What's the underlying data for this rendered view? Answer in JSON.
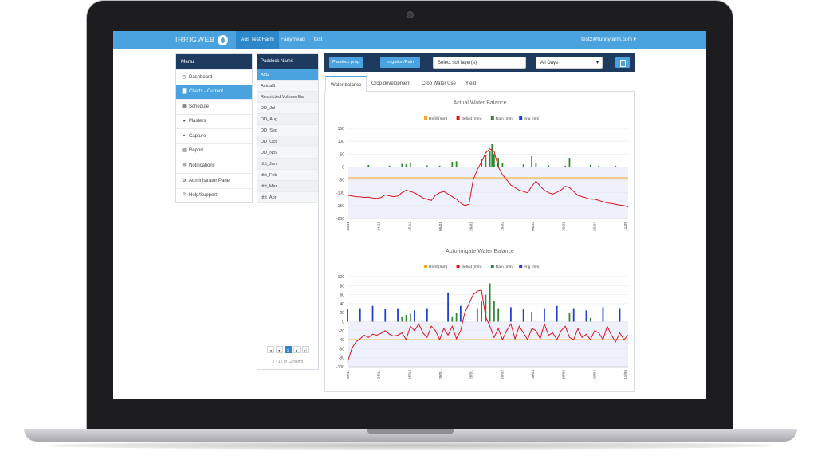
{
  "app": {
    "brand": "IRRIGWEB",
    "farm_tabs": [
      "Aus Test Farm",
      "Fairymead",
      "test"
    ],
    "active_farm": 0,
    "user": "test2@funnyfarm.com ▾"
  },
  "menu": {
    "header": "Menu",
    "items": [
      {
        "label": "Dashboard",
        "icon": "clock-icon",
        "glyph": "◷"
      },
      {
        "label": "Charts - Current",
        "icon": "bar-chart-icon",
        "glyph": "▇"
      },
      {
        "label": "Schedule",
        "icon": "calendar-icon",
        "glyph": "▦"
      },
      {
        "label": "Masters",
        "icon": "globe-icon",
        "glyph": "◕"
      },
      {
        "label": "Capture",
        "icon": "drop-icon",
        "glyph": "•"
      },
      {
        "label": "Report",
        "icon": "report-icon",
        "glyph": "▤"
      },
      {
        "label": "Notifications",
        "icon": "envelope-icon",
        "glyph": "✉"
      },
      {
        "label": "Administrator Panel",
        "icon": "gear-icon",
        "glyph": "⚙"
      },
      {
        "label": "Help/Support",
        "icon": "question-icon",
        "glyph": "?"
      }
    ],
    "active_index": 1
  },
  "paddocks": {
    "header": "Paddock Name",
    "items": [
      "Act2",
      "Actual1",
      "Restricted Volume Ea",
      "DD_Jul",
      "DD_Aug",
      "DD_Sep",
      "DD_Oct",
      "DD_Nov",
      "ttttt_Jan",
      "ttttt_Feb",
      "ttttt_Mar",
      "ttttt_Apr"
    ],
    "active_index": 0,
    "pager": {
      "first": "|◂",
      "prev": "◂",
      "page": "1",
      "next": "▸",
      "last": "▸|"
    },
    "info": "1 - 12 of 12 items"
  },
  "toolbar": {
    "paddock_prop": "Paddock prop.",
    "irrigation_rain": "Irrigation/Rain",
    "soil_layer": "Select soil layer(s)",
    "days": "All Days",
    "days_caret": "▾"
  },
  "tabs": [
    "Water balance",
    "Crop development",
    "Crop Water Use",
    "Yield"
  ],
  "active_tab": 0,
  "colors": {
    "refill": "#f5a623",
    "deficit": "#e0131b",
    "rain": "#2e8b2e",
    "irrig": "#1f3fd6",
    "band": "#eef0fb"
  },
  "chart_data": [
    {
      "type": "line",
      "title": "Actual Water Balance",
      "legend": [
        "Refill (mm)",
        "Deficit (mm)",
        "Rain (mm)",
        "Irrig (mm)"
      ],
      "legend_position": "top",
      "x_labels": [
        "03/11",
        "24/11",
        "15/12",
        "05/01",
        "26/01",
        "16/02",
        "09/03",
        "30/03",
        "20/04",
        "11/05"
      ],
      "yticks": [
        150,
        100,
        50,
        0,
        -50,
        -100,
        -150,
        -200
      ],
      "ylim": [
        -200,
        150
      ],
      "refill": -42,
      "deficit": [
        -110,
        -112,
        -115,
        -116,
        -118,
        -117,
        -120,
        -122,
        -119,
        -108,
        -112,
        -115,
        -113,
        -100,
        -90,
        -95,
        -100,
        -110,
        -120,
        -125,
        -130,
        -110,
        -100,
        -95,
        -105,
        -115,
        -125,
        -140,
        -150,
        -145,
        -50,
        -10,
        20,
        55,
        70,
        60,
        0,
        -30,
        -50,
        -70,
        -80,
        -90,
        -95,
        -100,
        -75,
        -55,
        -75,
        -90,
        -100,
        -105,
        -98,
        -90,
        -75,
        -80,
        -95,
        -110,
        -115,
        -120,
        -125,
        -125,
        -130,
        -135,
        -140,
        -142,
        -145,
        -148,
        -150,
        -155
      ],
      "rain": [
        {
          "i": 5,
          "v": 8
        },
        {
          "i": 10,
          "v": 5
        },
        {
          "i": 13,
          "v": 12
        },
        {
          "i": 14,
          "v": 10
        },
        {
          "i": 15,
          "v": 18
        },
        {
          "i": 19,
          "v": 6
        },
        {
          "i": 22,
          "v": 5
        },
        {
          "i": 25,
          "v": 20
        },
        {
          "i": 26,
          "v": 22
        },
        {
          "i": 32,
          "v": 30
        },
        {
          "i": 33,
          "v": 45
        },
        {
          "i": 34,
          "v": 60
        },
        {
          "i": 34.5,
          "v": 88
        },
        {
          "i": 35,
          "v": 50
        },
        {
          "i": 36,
          "v": 35
        },
        {
          "i": 37,
          "v": 15
        },
        {
          "i": 42,
          "v": 10
        },
        {
          "i": 44,
          "v": 42
        },
        {
          "i": 45,
          "v": 15
        },
        {
          "i": 48,
          "v": 6
        },
        {
          "i": 52,
          "v": 5
        },
        {
          "i": 53,
          "v": 35
        },
        {
          "i": 58,
          "v": 8
        },
        {
          "i": 60,
          "v": 5
        },
        {
          "i": 64,
          "v": 5
        }
      ],
      "irrig": []
    },
    {
      "type": "line",
      "title": "Auto-irrigate Water Balance",
      "legend": [
        "Refill (mm)",
        "Deficit (mm)",
        "Rain (mm)",
        "Irrig (mm)"
      ],
      "legend_position": "top",
      "x_labels": [
        "03/11",
        "24/11",
        "15/12",
        "05/01",
        "26/01",
        "16/02",
        "09/03",
        "30/03",
        "20/04",
        "11/05"
      ],
      "yticks": [
        100,
        80,
        60,
        40,
        20,
        0,
        -20,
        -40,
        -60,
        -80,
        -100
      ],
      "ylim": [
        -100,
        100
      ],
      "refill": -40,
      "deficit": [
        -90,
        -60,
        -45,
        -38,
        -30,
        -35,
        -28,
        -30,
        -26,
        -20,
        -28,
        -32,
        -30,
        -25,
        -40,
        -10,
        -20,
        -5,
        -25,
        -35,
        -10,
        -20,
        -40,
        -15,
        -30,
        -10,
        -38,
        -20,
        20,
        40,
        60,
        68,
        70,
        10,
        -10,
        -35,
        -15,
        -40,
        -20,
        -5,
        -38,
        -10,
        -25,
        -40,
        -15,
        -20,
        -38,
        -5,
        -30,
        -25,
        -40,
        -20,
        -10,
        -35,
        -40,
        -15,
        -35,
        -28,
        -40,
        -20,
        -25,
        -40,
        -10,
        -30,
        -45,
        -25,
        -40,
        -30
      ],
      "rain": [
        {
          "i": 13,
          "v": 10
        },
        {
          "i": 14,
          "v": 15
        },
        {
          "i": 15,
          "v": 18
        },
        {
          "i": 25,
          "v": 10
        },
        {
          "i": 26,
          "v": 20
        },
        {
          "i": 31,
          "v": 30
        },
        {
          "i": 32,
          "v": 45
        },
        {
          "i": 33,
          "v": 60
        },
        {
          "i": 34,
          "v": 85
        },
        {
          "i": 35,
          "v": 45
        },
        {
          "i": 36,
          "v": 30
        },
        {
          "i": 42,
          "v": 5
        },
        {
          "i": 44,
          "v": 22
        },
        {
          "i": 53,
          "v": 20
        },
        {
          "i": 58,
          "v": 8
        }
      ],
      "irrig": [
        {
          "i": 0,
          "v": 28
        },
        {
          "i": 3,
          "v": 30
        },
        {
          "i": 6,
          "v": 35
        },
        {
          "i": 9,
          "v": 28
        },
        {
          "i": 12,
          "v": 30
        },
        {
          "i": 16,
          "v": 25
        },
        {
          "i": 19,
          "v": 30
        },
        {
          "i": 24,
          "v": 65
        },
        {
          "i": 27,
          "v": 35
        },
        {
          "i": 39,
          "v": 32
        },
        {
          "i": 42,
          "v": 28
        },
        {
          "i": 47,
          "v": 30
        },
        {
          "i": 50,
          "v": 35
        },
        {
          "i": 54,
          "v": 30
        },
        {
          "i": 57,
          "v": 25
        },
        {
          "i": 61,
          "v": 32
        },
        {
          "i": 65,
          "v": 30
        }
      ]
    }
  ]
}
